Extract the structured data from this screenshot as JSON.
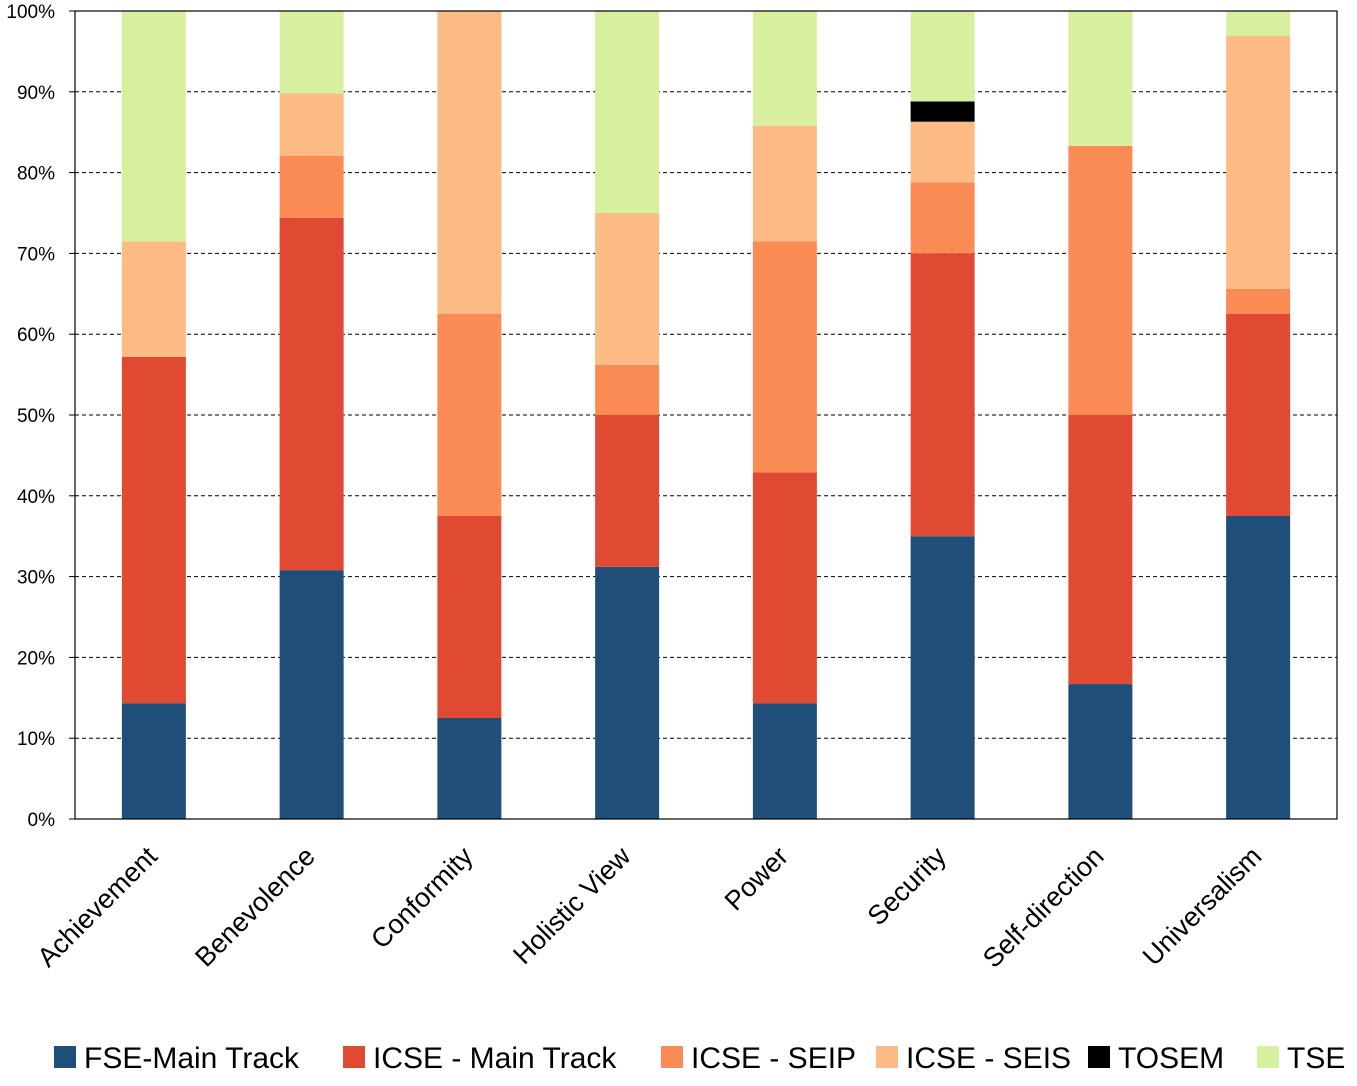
{
  "chart_data": {
    "type": "bar",
    "stacked": true,
    "normalized_percent": true,
    "categories": [
      "Achievement",
      "Benevolence",
      "Conformity",
      "Holistic View",
      "Power",
      "Security",
      "Self-direction",
      "Universalism"
    ],
    "series": [
      {
        "name": "FSE-Main Track",
        "color": "#1f4e79",
        "values": [
          14.3,
          30.8,
          12.5,
          31.2,
          14.3,
          35.0,
          16.7,
          37.5
        ]
      },
      {
        "name": "ICSE - Main Track",
        "color": "#e04a33",
        "values": [
          42.9,
          43.6,
          25.0,
          18.8,
          28.6,
          35.0,
          33.3,
          25.0
        ]
      },
      {
        "name": "ICSE - SEIP",
        "color": "#fb8b55",
        "values": [
          0.0,
          7.7,
          25.0,
          6.2,
          28.6,
          8.8,
          33.3,
          3.1
        ]
      },
      {
        "name": "ICSE - SEIS",
        "color": "#fcba84",
        "values": [
          14.3,
          7.7,
          37.5,
          18.8,
          14.3,
          7.5,
          0.0,
          31.3
        ]
      },
      {
        "name": "TOSEM",
        "color": "#000000",
        "values": [
          0.0,
          0.0,
          0.0,
          0.0,
          0.0,
          2.5,
          0.0,
          0.0
        ]
      },
      {
        "name": "TSE",
        "color": "#d9efa0",
        "values": [
          28.5,
          10.2,
          0.0,
          25.0,
          14.2,
          11.2,
          16.7,
          3.1
        ]
      }
    ],
    "yticks": [
      "0%",
      "10%",
      "20%",
      "30%",
      "40%",
      "50%",
      "60%",
      "70%",
      "80%",
      "90%",
      "100%"
    ],
    "ylim": [
      0,
      100
    ],
    "grid": true,
    "legend_position": "bottom"
  }
}
